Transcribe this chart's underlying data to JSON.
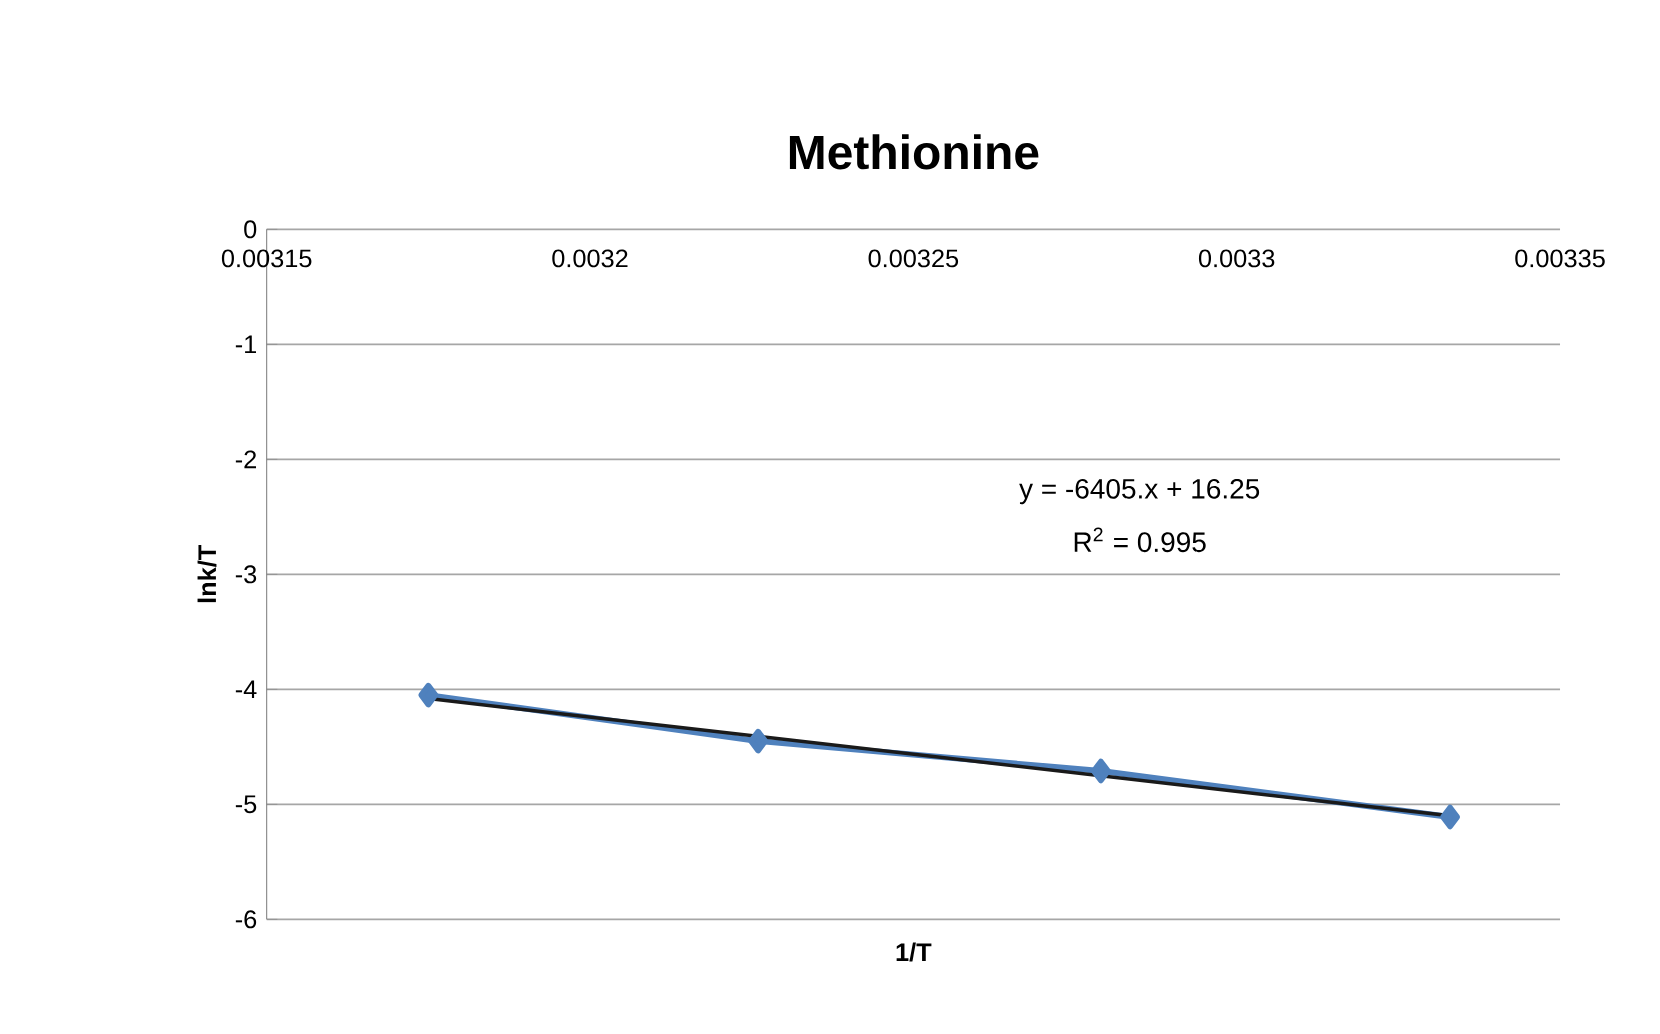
{
  "chart_data": {
    "type": "line",
    "title": "Methionine",
    "xlabel": "1/T",
    "ylabel": "lnk/T",
    "series": [
      {
        "color": "#4f81bd",
        "marker": "diamond",
        "x": [
          0.003175,
          0.003226,
          0.003279,
          0.003333
        ],
        "values": [
          -4.05,
          -4.45,
          -4.71,
          -5.11
        ]
      },
      {
        "type": "line",
        "color": "#1a1a1a",
        "marker": "none",
        "x": [
          0.003175,
          0.003333
        ],
        "values": [
          -4.08,
          -5.1
        ]
      }
    ],
    "xlim": [
      0.00315,
      0.00335
    ],
    "xticks": [
      0.00315,
      0.0032,
      0.00325,
      0.0033,
      0.00335
    ],
    "ylim": [
      -6,
      0
    ],
    "yticks": [
      -6,
      -5,
      -4,
      -3,
      -2,
      -1,
      0
    ],
    "grid": "y",
    "annotations": [
      "y = -6405.x + 16.25",
      "R$^{2}$ = 0.995"
    ]
  }
}
